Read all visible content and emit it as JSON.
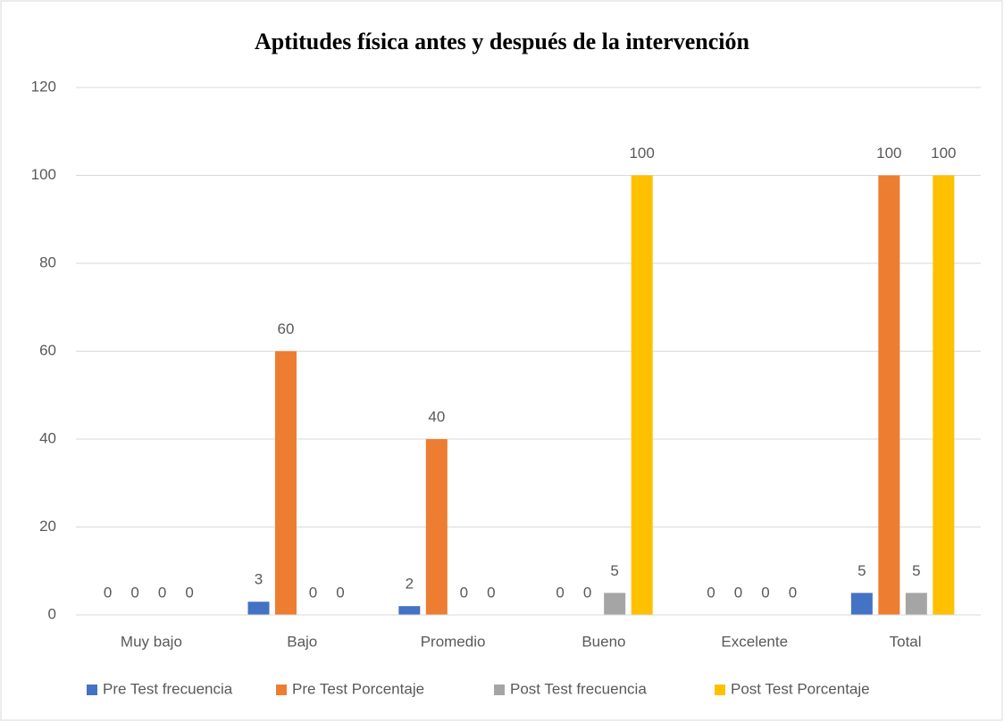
{
  "chart_data": {
    "type": "bar",
    "title": "Aptitudes física antes y después de la intervención",
    "categories": [
      "Muy bajo",
      "Bajo",
      "Promedio",
      "Bueno",
      "Excelente",
      "Total"
    ],
    "series": [
      {
        "name": "Pre Test frecuencia",
        "color": "#4472c4",
        "values": [
          0,
          3,
          2,
          0,
          0,
          5
        ]
      },
      {
        "name": "Pre Test Porcentaje",
        "color": "#ed7d31",
        "values": [
          0,
          60,
          40,
          0,
          0,
          100
        ]
      },
      {
        "name": "Post Test frecuencia",
        "color": "#a5a5a5",
        "values": [
          0,
          0,
          0,
          5,
          0,
          5
        ]
      },
      {
        "name": "Post Test Porcentaje",
        "color": "#ffc000",
        "values": [
          0,
          0,
          0,
          100,
          0,
          100
        ]
      }
    ],
    "ylim": [
      0,
      120
    ],
    "yticks": [
      0,
      20,
      40,
      60,
      80,
      100,
      120
    ],
    "grid": true,
    "legend": "bottom"
  }
}
